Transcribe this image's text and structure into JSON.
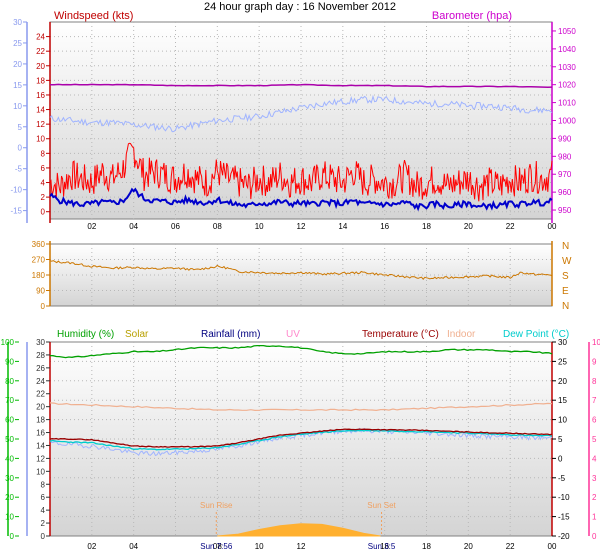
{
  "title": "24 hour graph day : 16 November 2012",
  "colors": {
    "grid": "#b8b8b8",
    "panel_top": "#ffffff",
    "panel_bottom": "#d4d4d4",
    "wind_axis": "#8899ee",
    "gust": "#ff0000",
    "avg_wind": "#0000cc",
    "temp_axis_left": "#c00000",
    "baro": "#cc00cc",
    "baro_trace": "#aa00aa",
    "dir": "#cc7700",
    "humidity": "#00a000",
    "solar": "#b8a000",
    "rain": "#000080",
    "uv": "#ff88cc",
    "temperature": "#990000",
    "indoor": "#f0b090",
    "dew_point": "#00cccc",
    "lower_temp_trace": "#a0b4ff",
    "sun": "#f0a060",
    "solar_area": "#ffb030",
    "hum_axis": "#00bb00",
    "uv_axis": "#ff3399"
  },
  "chart_data": [
    {
      "type": "line",
      "panel": "wind",
      "title": "24 hour graph day : 16 November 2012",
      "x_tick_labels": [
        "02",
        "04",
        "06",
        "08",
        "10",
        "12",
        "14",
        "16",
        "18",
        "20",
        "22",
        "00"
      ],
      "x_range_hours": [
        0,
        24
      ],
      "left_axis": {
        "label": "",
        "ticks": [
          -15,
          -10,
          -5,
          0,
          5,
          10,
          15,
          20,
          25,
          30
        ],
        "range": [
          -17,
          30
        ]
      },
      "inner_axis": {
        "label": "Windspeed (kts)",
        "ticks": [
          0,
          2,
          4,
          6,
          8,
          10,
          12,
          14,
          16,
          18,
          20,
          22,
          24
        ],
        "range": [
          -1,
          26
        ]
      },
      "right_axis": {
        "label": "Barometer (hpa)",
        "ticks": [
          950,
          960,
          970,
          980,
          990,
          1000,
          1010,
          1020,
          1030,
          1040,
          1050
        ],
        "range": [
          945,
          1055
        ]
      },
      "series": [
        {
          "name": "Barometer (hpa)",
          "x": [
            0,
            2,
            4,
            6,
            8,
            10,
            12,
            14,
            16,
            18,
            20,
            22,
            24
          ],
          "values": [
            1020,
            1020,
            1020,
            1019.5,
            1019.5,
            1019.5,
            1020,
            1019.5,
            1019.5,
            1019,
            1019,
            1019,
            1018.5
          ]
        },
        {
          "x": [
            0,
            1,
            2,
            3,
            4,
            5,
            6,
            7,
            8,
            9,
            10,
            11,
            12,
            13,
            14,
            15,
            16,
            17,
            18,
            19,
            20,
            21,
            22,
            23,
            24
          ],
          "values": [
            7,
            6.5,
            6,
            6,
            5.5,
            5,
            4.5,
            5.5,
            6.5,
            7,
            7.5,
            8.5,
            9.5,
            10.5,
            11,
            11.5,
            11.5,
            11,
            10.5,
            10.5,
            10,
            10,
            9.5,
            9,
            9
          ]
        },
        {
          "x": [
            0,
            0.5,
            1,
            1.5,
            2,
            2.5,
            3,
            3.5,
            4,
            4.5,
            5,
            5.5,
            6,
            6.5,
            7,
            7.5,
            8,
            8.5,
            9,
            9.5,
            10,
            10.5,
            11,
            11.5,
            12,
            12.5,
            13,
            13.5,
            14,
            14.5,
            15,
            15.5,
            16,
            16.5,
            17,
            17.5,
            18,
            18.5,
            19,
            19.5,
            20,
            20.5,
            21,
            21.5,
            22,
            22.5,
            23,
            23.5,
            24
          ],
          "values": [
            4,
            3.5,
            5,
            4.5,
            4,
            5.5,
            4.5,
            6,
            8.5,
            5,
            5.5,
            5,
            4.5,
            5.5,
            4.5,
            4,
            5.5,
            4.5,
            4,
            3.5,
            4.5,
            4,
            5,
            4,
            4.5,
            4,
            5,
            4.5,
            4,
            5.5,
            4,
            4.5,
            4,
            4,
            5,
            3.5,
            4,
            4.5,
            3.5,
            4,
            4.5,
            3.5,
            4,
            3.5,
            4.5,
            4,
            5,
            4.5,
            5
          ]
        },
        {
          "x": [
            0,
            0.5,
            1,
            1.5,
            2,
            2.5,
            3,
            3.5,
            4,
            4.5,
            5,
            5.5,
            6,
            6.5,
            7,
            7.5,
            8,
            8.5,
            9,
            9.5,
            10,
            10.5,
            11,
            11.5,
            12,
            12.5,
            13,
            13.5,
            14,
            14.5,
            15,
            15.5,
            16,
            16.5,
            17,
            17.5,
            18,
            18.5,
            19,
            19.5,
            20,
            20.5,
            21,
            21.5,
            22,
            22.5,
            23,
            23.5,
            24
          ],
          "values": [
            2.2,
            1.5,
            1.2,
            1,
            1.1,
            1.3,
            1.2,
            1.5,
            3,
            1.8,
            1.5,
            1.4,
            1.3,
            1.6,
            1.4,
            1.2,
            1.7,
            1.2,
            1,
            0.8,
            1.2,
            1.1,
            1.4,
            1.1,
            1.2,
            1,
            1.3,
            1.2,
            1.1,
            1.5,
            1,
            1.2,
            1,
            1,
            1.3,
            0.7,
            0.8,
            1.1,
            0.7,
            0.9,
            1.2,
            0.6,
            0.9,
            0.8,
            1.1,
            1,
            1.3,
            1.2,
            1.4
          ]
        }
      ]
    },
    {
      "type": "line",
      "panel": "wind_direction",
      "x_range_hours": [
        0,
        24
      ],
      "left_axis": {
        "label": "",
        "ticks": [
          0,
          90,
          180,
          270,
          360
        ],
        "range": [
          0,
          360
        ]
      },
      "right_axis": {
        "label": "",
        "tick_labels": [
          "N",
          "W",
          "S",
          "E",
          "N"
        ]
      },
      "series": [
        {
          "x": [
            0,
            1,
            2,
            3,
            4,
            5,
            6,
            7,
            8,
            8.5,
            9,
            10,
            11,
            12,
            13,
            14,
            15,
            16,
            17,
            18,
            19,
            20,
            21,
            22,
            22.5,
            23,
            24
          ],
          "values": [
            260,
            250,
            230,
            220,
            225,
            215,
            220,
            210,
            230,
            220,
            200,
            195,
            190,
            195,
            185,
            190,
            195,
            180,
            170,
            160,
            165,
            170,
            175,
            165,
            195,
            185,
            180
          ]
        }
      ]
    },
    {
      "type": "line",
      "panel": "temperature_humidity",
      "x_tick_labels": [
        "02",
        "04",
        "06",
        "08",
        "10",
        "12",
        "14",
        "16",
        "18",
        "20",
        "22",
        "00"
      ],
      "x_range_hours": [
        0,
        24
      ],
      "left_axis": {
        "label": "Humidity (%)",
        "ticks": [
          0,
          10,
          20,
          30,
          40,
          50,
          60,
          70,
          80,
          90,
          100
        ],
        "range": [
          0,
          100
        ]
      },
      "inner_axis": {
        "label": "",
        "ticks": [
          0,
          2,
          4,
          6,
          8,
          10,
          12,
          14,
          16,
          18,
          20,
          22,
          24,
          26,
          28,
          30
        ],
        "range": [
          0,
          30
        ]
      },
      "right_axis": {
        "label": "",
        "ticks": [
          -20,
          -15,
          -10,
          -5,
          0,
          5,
          10,
          15,
          20,
          25,
          30
        ],
        "range": [
          -20,
          30
        ]
      },
      "far_right_axis": {
        "label": "",
        "ticks": [
          0,
          1,
          2,
          3,
          4,
          5,
          6,
          7,
          8,
          9,
          10
        ],
        "range": [
          0,
          10
        ]
      },
      "legend_labels": [
        "Humidity (%)",
        "Solar",
        "Rainfall (mm)",
        "UV",
        "Temperature (°C)",
        "Indoor",
        "Dew Point (°C)"
      ],
      "annotations": [
        {
          "text": "Sun Rise",
          "x_hour": 7.95
        },
        {
          "text": "Sun Set",
          "x_hour": 15.85
        }
      ],
      "x_time_labels": [
        "Sun 7:56",
        "Sun 3:5"
      ],
      "series": [
        {
          "name": "Humidity (%)",
          "x": [
            0,
            1,
            2,
            3,
            4,
            5,
            6,
            7,
            8,
            9,
            10,
            11,
            12,
            13,
            14,
            15,
            16,
            17,
            18,
            19,
            20,
            21,
            22,
            23,
            24
          ],
          "values": [
            93,
            92,
            93,
            94,
            95,
            95,
            96,
            97,
            97,
            97,
            98,
            98,
            97,
            95,
            94,
            94,
            95,
            95,
            95,
            96,
            96,
            96,
            95,
            95,
            94
          ]
        },
        {
          "name": "Indoor",
          "x": [
            0,
            4,
            8,
            12,
            16,
            20,
            24
          ],
          "values": [
            20.5,
            20,
            19.5,
            19.5,
            19.5,
            20,
            20.5
          ]
        },
        {
          "name": "Temperature (°C)",
          "x": [
            0,
            1,
            2,
            3,
            4,
            5,
            6,
            7,
            8,
            9,
            10,
            11,
            12,
            13,
            14,
            15,
            16,
            17,
            18,
            19,
            20,
            21,
            22,
            23,
            24
          ],
          "values": [
            5,
            5,
            4.8,
            4,
            3.2,
            3,
            3,
            3,
            3.2,
            4,
            5,
            6,
            6.5,
            7,
            7.5,
            7.5,
            7.4,
            7.3,
            7.2,
            7,
            6.8,
            6.6,
            6.5,
            6.3,
            6.2
          ]
        },
        {
          "name": "Dew Point (°C)",
          "x": [
            0,
            1,
            2,
            3,
            4,
            5,
            6,
            7,
            8,
            9,
            10,
            11,
            12,
            13,
            14,
            15,
            16,
            17,
            18,
            19,
            20,
            21,
            22,
            23,
            24
          ],
          "values": [
            4.5,
            4.2,
            4,
            3.2,
            2.5,
            2.3,
            2.4,
            2.5,
            2.8,
            3.6,
            4.6,
            5.6,
            6.2,
            6.7,
            7.1,
            7.2,
            7.1,
            7,
            6.9,
            6.7,
            6.5,
            6.3,
            6.1,
            5.9,
            5.8
          ]
        },
        {
          "x": [
            0,
            1,
            2,
            3,
            4,
            5,
            6,
            7,
            8,
            9,
            10,
            11,
            12,
            13,
            14,
            15,
            16,
            17,
            18,
            19,
            20,
            21,
            22,
            23,
            24
          ],
          "values": [
            4,
            3.6,
            3.2,
            2.4,
            1.4,
            1.2,
            1.5,
            1.9,
            2.4,
            3.3,
            4.4,
            5.4,
            6,
            6.6,
            7.1,
            7.2,
            7,
            6.8,
            6.6,
            6.3,
            5.9,
            5.7,
            5.6,
            5.4,
            5.3
          ]
        },
        {
          "name": "Solar",
          "x": [
            8,
            9,
            10,
            11,
            12,
            13,
            14,
            15,
            15.8
          ],
          "values": [
            0,
            0.3,
            1,
            1.6,
            1.9,
            1.8,
            1.2,
            0.4,
            0
          ]
        }
      ]
    }
  ]
}
